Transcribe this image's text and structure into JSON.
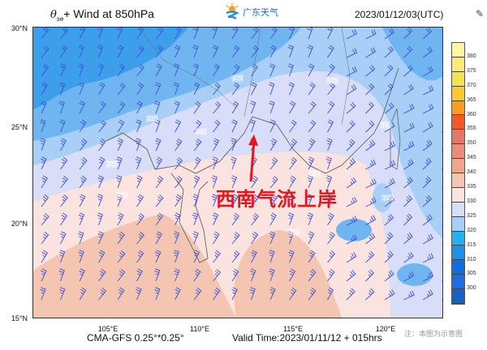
{
  "header": {
    "title_symbol": "θ",
    "title_sub": "se",
    "title_rest": "+ Wind at 850hPa",
    "logo_text": "广东天气",
    "datetime": "2023/01/12/03(UTC)"
  },
  "axes": {
    "lat": [
      "30°N",
      "25°N",
      "20°N",
      "15°N"
    ],
    "lon": [
      "105°E",
      "110°E",
      "115°E",
      "120°E"
    ]
  },
  "footer": {
    "model": "CMA-GFS  0.25°*0.25°",
    "valid_time": "Valid Time:2023/01/11/12 + 015hrs",
    "note": "注：本图为示意图"
  },
  "annotation": {
    "text": "西南气流上岸",
    "color": "#e8141c"
  },
  "contour_labels": [
    "325",
    "325",
    "320",
    "330",
    "330",
    "325",
    "335",
    "330",
    "330",
    "325"
  ],
  "colorbar": {
    "labels": [
      "380",
      "375",
      "370",
      "365",
      "360",
      "355",
      "350",
      "345",
      "340",
      "335",
      "330",
      "325",
      "320",
      "315",
      "310",
      "305",
      "300"
    ],
    "colors": [
      "#fff6a0",
      "#f9ec70",
      "#f5e34e",
      "#fbca2e",
      "#fb9c1c",
      "#f55a22",
      "#e3776a",
      "#ea8d7c",
      "#efa68e",
      "#f4c6b2",
      "#fbe3e0",
      "#d8def8",
      "#a6d0f6",
      "#22b0f2",
      "#1992ea",
      "#0d6fe0",
      "#1a6fe4",
      "#1560c4"
    ]
  },
  "icons": {
    "logo": "sun-wave-logo-icon",
    "edit": "pencil-icon"
  },
  "colors": {
    "wind_barb": "#3b4fd8",
    "coast": "#555555"
  }
}
